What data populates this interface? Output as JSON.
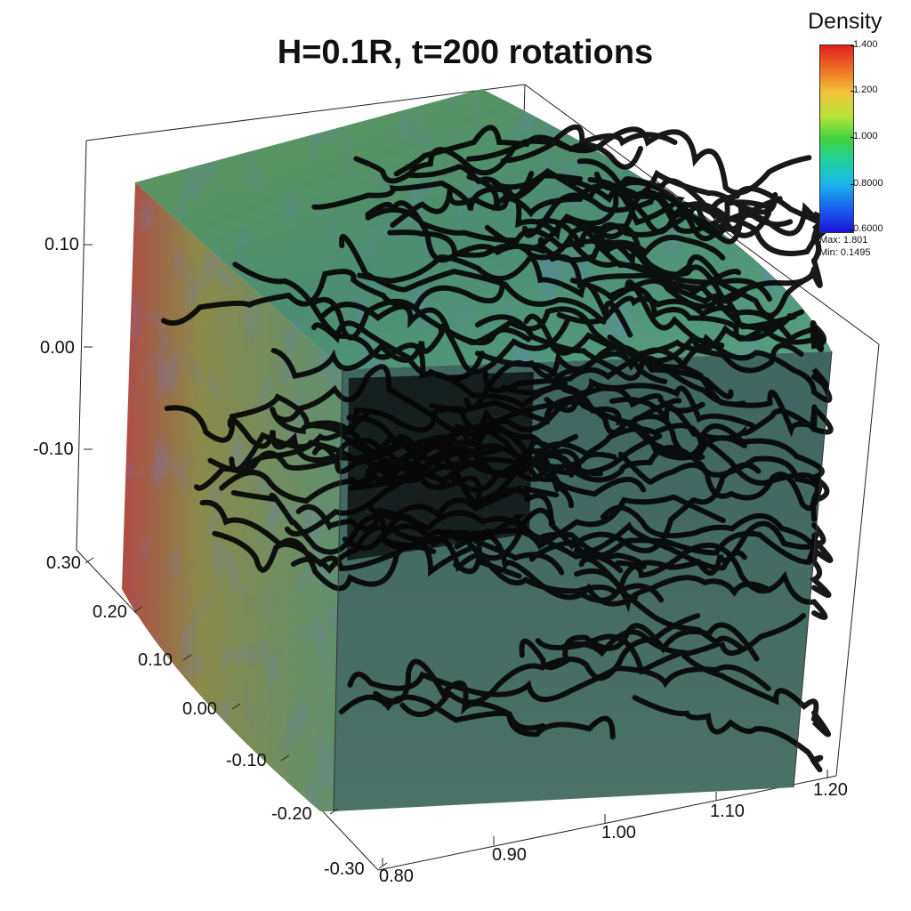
{
  "title": "H=0.1R, t=200 rotations",
  "colorbar": {
    "title": "Density",
    "ticks": [
      "1.400",
      "1.200",
      "1.000",
      "0.8000",
      "0.6000"
    ],
    "max_label": "Max:  1.801",
    "min_label": "Min:  0.1495",
    "colors": [
      "#e02020",
      "#f2c33a",
      "#3fd33f",
      "#1ab7ea",
      "#1a14d8"
    ]
  },
  "axes": {
    "z_ticks": [
      "0.10",
      "0.00",
      "-0.10"
    ],
    "y_ticks": [
      "0.30",
      "0.20",
      "0.10",
      "0.00",
      "-0.10",
      "-0.20",
      "-0.30"
    ],
    "x_ticks": [
      "0.80",
      "0.90",
      "1.00",
      "1.10",
      "1.20"
    ]
  }
}
